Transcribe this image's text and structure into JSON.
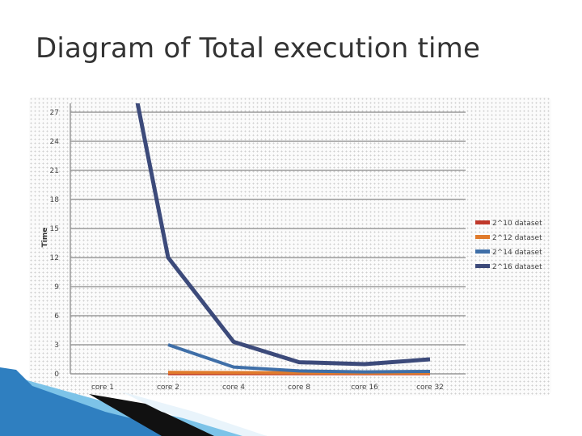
{
  "slide": {
    "title": "Diagram of Total execution time"
  },
  "colors": {
    "background": "#ffffff",
    "panel": "#fbfbfb",
    "grid": "#999999",
    "deco_blue": "#2f7fc0",
    "deco_light": "#7cc3e8"
  },
  "chart_data": {
    "type": "line",
    "title": "",
    "xlabel": "",
    "ylabel": "Time",
    "categories": [
      "core 1",
      "core 2",
      "core 4",
      "core 8",
      "core 16",
      "core 32"
    ],
    "yticks": [
      0,
      3,
      6,
      9,
      12,
      15,
      18,
      21,
      24,
      27
    ],
    "ytick_labels": [
      "0",
      "3",
      "6",
      "9",
      "12",
      "15",
      "18",
      "21",
      "24",
      "27"
    ],
    "ylim": [
      0,
      27
    ],
    "grid": true,
    "legend_position": "right",
    "series": [
      {
        "name": "2^10 dataset",
        "color": "#c0392b",
        "values": [
          null,
          0.02,
          0.02,
          0.02,
          0.02,
          0.02
        ]
      },
      {
        "name": "2^12 dataset",
        "color": "#e07b2c",
        "values": [
          null,
          0.15,
          0.12,
          0.1,
          0.08,
          0.08
        ]
      },
      {
        "name": "2^14 dataset",
        "color": "#3f6fa8",
        "values": [
          null,
          3.0,
          0.7,
          0.3,
          0.2,
          0.25
        ]
      },
      {
        "name": "2^16 dataset",
        "color": "#3c4a7a",
        "values": [
          28,
          12,
          3.3,
          1.2,
          1.0,
          1.5
        ]
      }
    ]
  }
}
